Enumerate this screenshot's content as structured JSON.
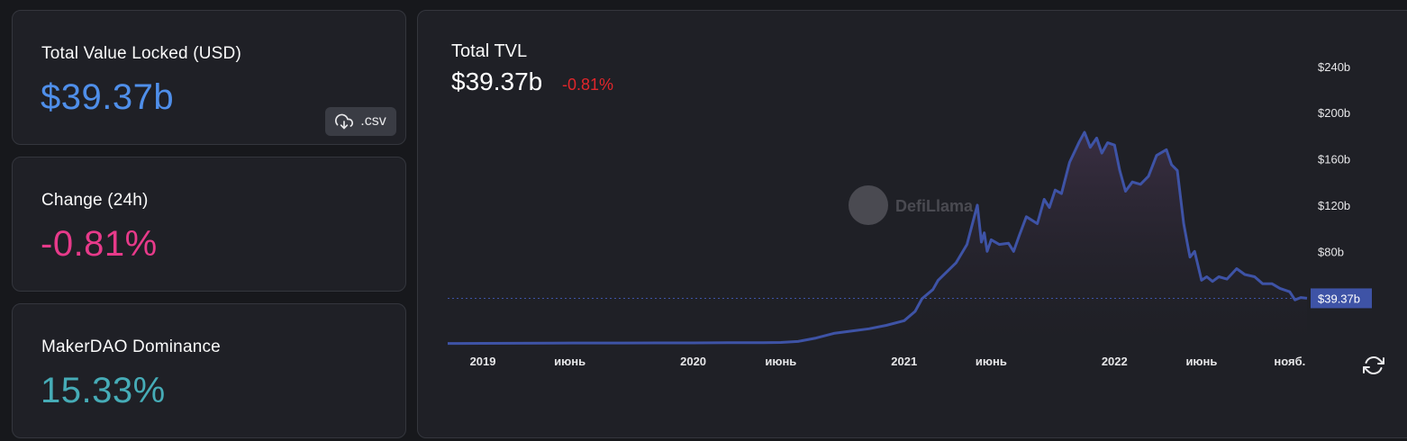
{
  "cards": {
    "tvl": {
      "title": "Total Value Locked (USD)",
      "value": "$39.37b",
      "value_color": "#4f8fea",
      "csv_label": ".csv"
    },
    "change": {
      "title": "Change (24h)",
      "value": "-0.81%",
      "value_color": "#e73a8a"
    },
    "dominance": {
      "title": "MakerDAO Dominance",
      "value": "15.33%",
      "value_color": "#46acb7"
    }
  },
  "chart_header": {
    "title": "Total TVL",
    "value": "$39.37b",
    "change": "-0.81%",
    "change_color": "#e0262b"
  },
  "watermark": "DefiLlama",
  "colors": {
    "line": "#3e53a6",
    "price_tag_bg": "#3e53a6",
    "background": "#1f2026",
    "card_border": "#34363d"
  },
  "chart_data": {
    "type": "area",
    "xlabel": "",
    "ylabel": "",
    "x_ticks": [
      "2019",
      "июнь",
      "2020",
      "июнь",
      "2021",
      "июнь",
      "2022",
      "июнь",
      "нояб."
    ],
    "y_ticks": [
      "$240b",
      "$200b",
      "$160b",
      "$120b",
      "$80b"
    ],
    "ylim": [
      0,
      250
    ],
    "current_value": 39.37,
    "current_label": "$39.37b",
    "series": [
      {
        "x": [
          "2018-11",
          "2019-01",
          "2019-03",
          "2019-05",
          "2019-07",
          "2019-09",
          "2019-11",
          "2020-01",
          "2020-03",
          "2020-05",
          "2020-06",
          "2020-07",
          "2020-08",
          "2020-09",
          "2020-10",
          "2020-11",
          "2020-12",
          "2021-01",
          "2021-01-20",
          "2021-02",
          "2021-02-20",
          "2021-03",
          "2021-04",
          "2021-04-20",
          "2021-05-08",
          "2021-05-15",
          "2021-05-20",
          "2021-05-25",
          "2021-06",
          "2021-06-15",
          "2021-07",
          "2021-07-10",
          "2021-07-20",
          "2021-08",
          "2021-08-20",
          "2021-09",
          "2021-09-10",
          "2021-09-20",
          "2021-10",
          "2021-10-15",
          "2021-11",
          "2021-11-10",
          "2021-11-20",
          "2021-12",
          "2021-12-10",
          "2021-12-20",
          "2022-01",
          "2022-01-10",
          "2022-01-20",
          "2022-02",
          "2022-02-15",
          "2022-03",
          "2022-03-15",
          "2022-04",
          "2022-04-10",
          "2022-04-20",
          "2022-05",
          "2022-05-08",
          "2022-05-12",
          "2022-05-20",
          "2022-06",
          "2022-06-10",
          "2022-06-20",
          "2022-07",
          "2022-07-15",
          "2022-08",
          "2022-08-15",
          "2022-09",
          "2022-09-15",
          "2022-10",
          "2022-10-15",
          "2022-11",
          "2022-11-10",
          "2022-11-20",
          "2022-12"
        ],
        "y": [
          0.3,
          0.4,
          0.5,
          0.6,
          0.7,
          0.7,
          0.8,
          0.8,
          0.9,
          1.0,
          1.2,
          2.0,
          5.0,
          9.0,
          11.0,
          13.0,
          16.0,
          20.0,
          28.0,
          39.0,
          47.0,
          55.0,
          70.0,
          86.0,
          120.0,
          88.0,
          96.0,
          80.0,
          90.0,
          86.0,
          87.0,
          80.0,
          94.0,
          110.0,
          104.0,
          125.0,
          118.0,
          133.0,
          130.0,
          157.0,
          175.0,
          183.0,
          170.0,
          178.0,
          165.0,
          174.0,
          172.0,
          150.0,
          132.0,
          140.0,
          138.0,
          145.0,
          163.0,
          168.0,
          155.0,
          150.0,
          104.0,
          85.0,
          75.0,
          80.0,
          55.0,
          58.0,
          54.0,
          58.0,
          56.0,
          65.0,
          60.0,
          58.0,
          52.0,
          52.0,
          48.0,
          45.0,
          38.0,
          40.0,
          39.37
        ]
      }
    ]
  }
}
